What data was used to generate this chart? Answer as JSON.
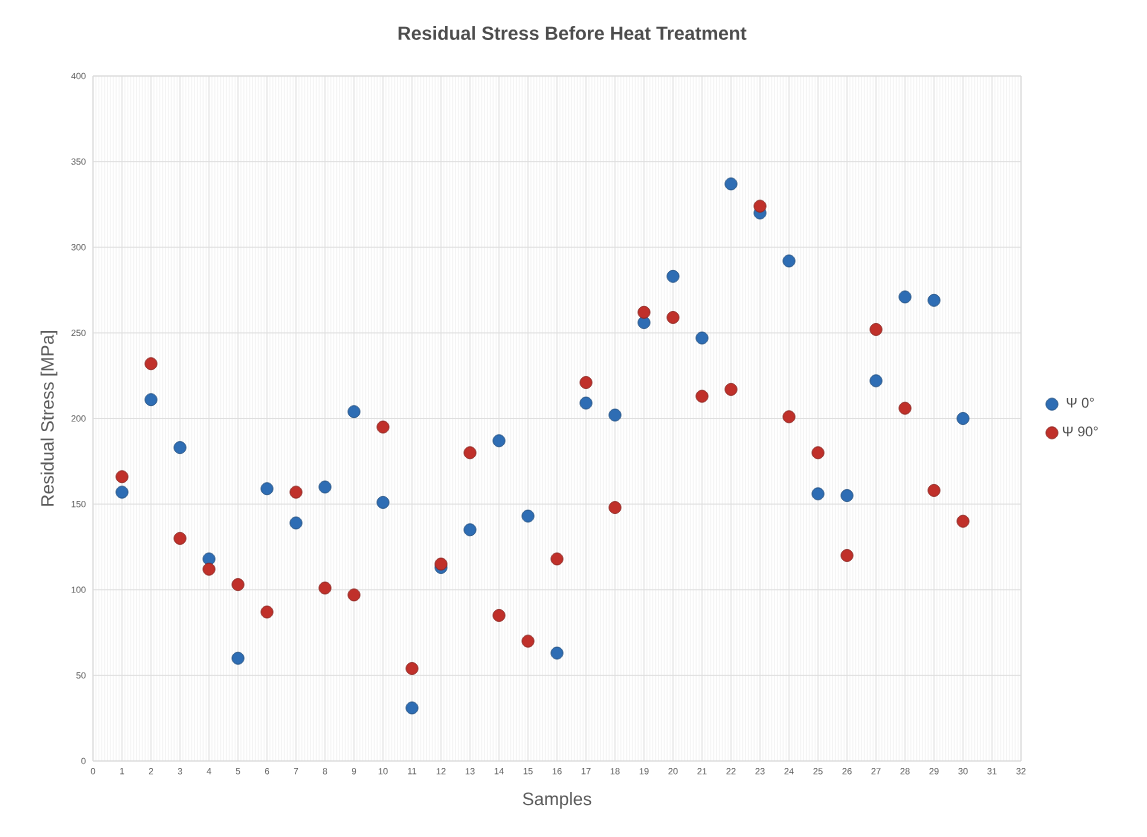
{
  "chart_data": {
    "type": "scatter",
    "title": "Residual Stress Before Heat Treatment",
    "xlabel": "Samples",
    "ylabel": "Residual Stress [MPa]",
    "x": [
      1,
      2,
      3,
      4,
      5,
      6,
      7,
      8,
      9,
      10,
      11,
      12,
      13,
      14,
      15,
      16,
      17,
      18,
      19,
      20,
      21,
      22,
      23,
      24,
      25,
      26,
      27,
      28,
      29,
      30
    ],
    "series": [
      {
        "name": "Ψ 0°",
        "color": "#2e6db4",
        "values": [
          157,
          211,
          183,
          118,
          60,
          159,
          139,
          160,
          204,
          151,
          31,
          113,
          135,
          187,
          143,
          63,
          209,
          202,
          256,
          283,
          247,
          337,
          320,
          292,
          156,
          155,
          222,
          271,
          269,
          200
        ]
      },
      {
        "name": "Ψ 90°",
        "color": "#c0302a",
        "values": [
          166,
          232,
          130,
          112,
          103,
          87,
          157,
          101,
          97,
          195,
          54,
          115,
          180,
          85,
          70,
          118,
          221,
          148,
          262,
          259,
          213,
          217,
          324,
          201,
          180,
          120,
          252,
          206,
          158,
          140
        ]
      }
    ],
    "xlim": [
      0,
      32
    ],
    "xticks": [
      0,
      1,
      2,
      3,
      4,
      5,
      6,
      7,
      8,
      9,
      10,
      11,
      12,
      13,
      14,
      15,
      16,
      17,
      18,
      19,
      20,
      21,
      22,
      23,
      24,
      25,
      26,
      27,
      28,
      29,
      30,
      31,
      32
    ],
    "ylim": [
      0,
      400
    ],
    "yticks": [
      0,
      50,
      100,
      150,
      200,
      250,
      300,
      350,
      400
    ],
    "grid": true,
    "legend": "right",
    "marker": "circle"
  }
}
